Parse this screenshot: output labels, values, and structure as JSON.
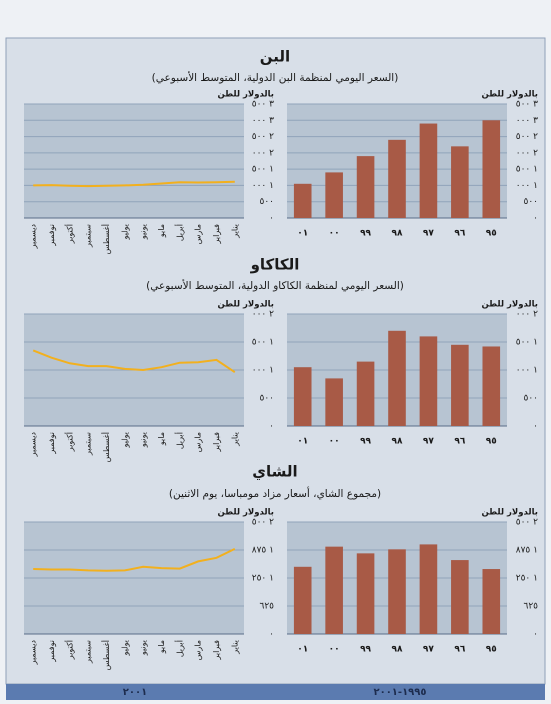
{
  "sections": [
    {
      "title": "البن",
      "subtitle": "(السعر اليومي لمنظمة البن الدولية، المتوسط الأسبوعي)"
    },
    {
      "title": "الكاكاو",
      "subtitle": "(السعر اليومي لمنظمة الكاكاو الدولية، المتوسط الأسبوعي)"
    },
    {
      "title": "الشاي",
      "subtitle": "(مجموع الشاي، أسعار مزاد مومباسا، يوم الاثنين)"
    }
  ],
  "footer": {
    "left": "٢٠٠١",
    "right": "١٩٩٥-٢٠٠١"
  },
  "chart_data": [
    {
      "type": "bar",
      "y_label": "بالدولار للطن",
      "categories": [
        "٠١",
        "٠٠",
        "٩٩",
        "٩٨",
        "٩٧",
        "٩٦",
        "٩٥"
      ],
      "values": [
        1050,
        1400,
        1900,
        2400,
        2900,
        2200,
        3000
      ],
      "color": "#a85a46",
      "background": "#b7c4d2",
      "ylim": [
        0,
        3500
      ],
      "yticks": [
        {
          "value": 0,
          "label": "٠"
        },
        {
          "value": 500,
          "label": "٥٠٠"
        },
        {
          "value": 1000,
          "label": "١ ٠٠٠"
        },
        {
          "value": 1500,
          "label": "١ ٥٠٠"
        },
        {
          "value": 2000,
          "label": "٢ ٠٠٠"
        },
        {
          "value": 2500,
          "label": "٢ ٥٠٠"
        },
        {
          "value": 3000,
          "label": "٣ ٠٠٠"
        },
        {
          "value": 3500,
          "label": "٣ ٥٠٠"
        }
      ],
      "grid": true
    },
    {
      "type": "line",
      "y_label": "بالدولار للطن",
      "categories": [
        "ديسمبر",
        "نوفمبر",
        "أكتوبر",
        "سبتمبر",
        "أغسطس",
        "يوليو",
        "يونيو",
        "مايو",
        "أبريل",
        "مارس",
        "فبراير",
        "يناير"
      ],
      "values": [
        1000,
        1010,
        990,
        980,
        990,
        1000,
        1020,
        1060,
        1100,
        1090,
        1100,
        1110
      ],
      "color": "#f2b01e",
      "background": "#b7c4d2",
      "ylim": [
        0,
        3500
      ],
      "yticks": [
        {
          "value": 0,
          "label": "٠"
        },
        {
          "value": 500,
          "label": "٥٠٠"
        },
        {
          "value": 1000,
          "label": "١ ٠٠٠"
        },
        {
          "value": 1500,
          "label": "١ ٥٠٠"
        },
        {
          "value": 2000,
          "label": "٢ ٠٠٠"
        },
        {
          "value": 2500,
          "label": "٢ ٥٠٠"
        },
        {
          "value": 3000,
          "label": "٣ ٠٠٠"
        },
        {
          "value": 3500,
          "label": "٣ ٥٠٠"
        }
      ],
      "grid": true
    },
    {
      "type": "bar",
      "y_label": "بالدولار للطن",
      "categories": [
        "٠١",
        "٠٠",
        "٩٩",
        "٩٨",
        "٩٧",
        "٩٦",
        "٩٥"
      ],
      "values": [
        1050,
        850,
        1150,
        1700,
        1600,
        1450,
        1420
      ],
      "color": "#a85a46",
      "background": "#b7c4d2",
      "ylim": [
        0,
        2000
      ],
      "yticks": [
        {
          "value": 0,
          "label": "٠"
        },
        {
          "value": 500,
          "label": "٥٠٠"
        },
        {
          "value": 1000,
          "label": "١ ٠٠٠"
        },
        {
          "value": 1500,
          "label": "١ ٥٠٠"
        },
        {
          "value": 2000,
          "label": "٢ ٠٠٠"
        }
      ],
      "grid": true
    },
    {
      "type": "line",
      "y_label": "بالدولار للطن",
      "categories": [
        "ديسمبر",
        "نوفمبر",
        "أكتوبر",
        "سبتمبر",
        "أغسطس",
        "يوليو",
        "يونيو",
        "مايو",
        "أبريل",
        "مارس",
        "فبراير",
        "يناير"
      ],
      "values": [
        1350,
        1220,
        1120,
        1070,
        1070,
        1020,
        1000,
        1050,
        1130,
        1140,
        1180,
        960
      ],
      "color": "#f2b01e",
      "background": "#b7c4d2",
      "ylim": [
        0,
        2000
      ],
      "yticks": [
        {
          "value": 0,
          "label": "٠"
        },
        {
          "value": 500,
          "label": "٥٠٠"
        },
        {
          "value": 1000,
          "label": "١ ٠٠٠"
        },
        {
          "value": 1500,
          "label": "١ ٥٠٠"
        },
        {
          "value": 2000,
          "label": "٢ ٠٠٠"
        }
      ],
      "grid": true
    },
    {
      "type": "bar",
      "y_label": "بالدولار للطن",
      "categories": [
        "٠١",
        "٠٠",
        "٩٩",
        "٩٨",
        "٩٧",
        "٩٦",
        "٩٥"
      ],
      "values": [
        1500,
        1950,
        1800,
        1890,
        2000,
        1650,
        1450
      ],
      "color": "#a85a46",
      "background": "#b7c4d2",
      "ylim": [
        0,
        2500
      ],
      "yticks": [
        {
          "value": 0,
          "label": "٠"
        },
        {
          "value": 625,
          "label": "٦٢٥"
        },
        {
          "value": 1250,
          "label": "١ ٢٥٠"
        },
        {
          "value": 1875,
          "label": "١ ٨٧٥"
        },
        {
          "value": 2500,
          "label": "٢ ٥٠٠"
        }
      ],
      "grid": true
    },
    {
      "type": "line",
      "y_label": "بالدولار للطن",
      "categories": [
        "ديسمبر",
        "نوفمبر",
        "أكتوبر",
        "سبتمبر",
        "أغسطس",
        "يوليو",
        "يونيو",
        "مايو",
        "أبريل",
        "مارس",
        "فبراير",
        "يناير"
      ],
      "values": [
        1450,
        1440,
        1440,
        1420,
        1410,
        1420,
        1500,
        1470,
        1460,
        1620,
        1700,
        1900
      ],
      "color": "#f2b01e",
      "background": "#b7c4d2",
      "ylim": [
        0,
        2500
      ],
      "yticks": [
        {
          "value": 0,
          "label": "٠"
        },
        {
          "value": 625,
          "label": "٦٢٥"
        },
        {
          "value": 1250,
          "label": "١ ٢٥٠"
        },
        {
          "value": 1875,
          "label": "١ ٨٧٥"
        },
        {
          "value": 2500,
          "label": "٢ ٥٠٠"
        }
      ],
      "grid": true
    }
  ]
}
